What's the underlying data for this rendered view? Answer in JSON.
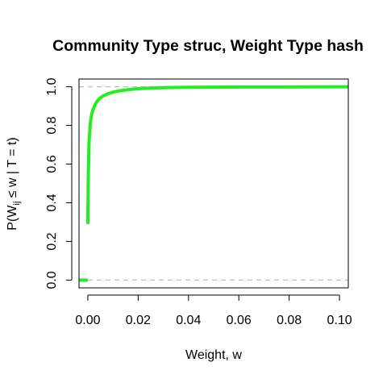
{
  "chart_data": {
    "type": "line",
    "title": "Community Type struc, Weight Type hash",
    "xlabel": "Weight, w",
    "ylabel": {
      "prefix": "P(W",
      "subscript": "ij",
      "middle": " ≤ w | T = t)"
    },
    "xlim": [
      -0.0035,
      0.1035
    ],
    "ylim": [
      -0.04,
      1.04
    ],
    "x_ticks": [
      0.0,
      0.02,
      0.04,
      0.06,
      0.08,
      0.1
    ],
    "x_tick_labels": [
      "0.00",
      "0.02",
      "0.04",
      "0.06",
      "0.08",
      "0.10"
    ],
    "y_ticks": [
      0.0,
      0.2,
      0.4,
      0.6,
      0.8,
      1.0
    ],
    "y_tick_labels": [
      "0.0",
      "0.2",
      "0.4",
      "0.6",
      "0.8",
      "1.0"
    ],
    "reference_lines": [
      0,
      1
    ],
    "reference_line_color": "#bebebe",
    "series": [
      {
        "color": "#22ee22",
        "segments": [
          {
            "x": [
              -0.0035,
              0.0
            ],
            "y": [
              0.0,
              0.0
            ]
          },
          {
            "x": [
              0.0,
              0.0002,
              0.0005,
              0.001,
              0.0015,
              0.002,
              0.003,
              0.004,
              0.005,
              0.006,
              0.008,
              0.01,
              0.013,
              0.016,
              0.02,
              0.025,
              0.03,
              0.04,
              0.05,
              0.06,
              0.08,
              0.1,
              0.1035
            ],
            "y": [
              0.29,
              0.55,
              0.72,
              0.81,
              0.855,
              0.88,
              0.91,
              0.93,
              0.943,
              0.952,
              0.964,
              0.972,
              0.98,
              0.985,
              0.99,
              0.993,
              0.995,
              0.997,
              0.998,
              0.999,
              0.999,
              1.0,
              1.0
            ]
          }
        ]
      }
    ],
    "grid": false,
    "legend": "none"
  }
}
